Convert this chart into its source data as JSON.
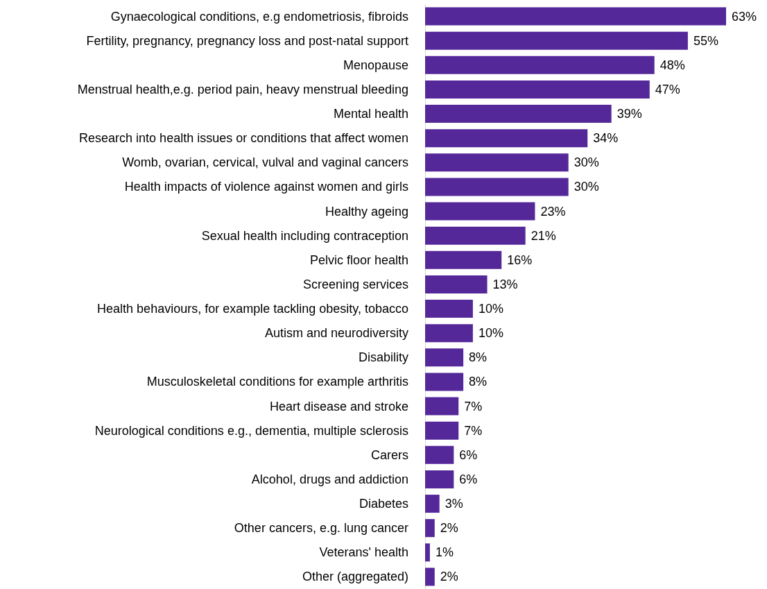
{
  "chart_data": {
    "type": "bar",
    "orientation": "horizontal",
    "categories": [
      "Gynaecological conditions, e.g endometriosis, fibroids",
      "Fertility, pregnancy, pregnancy loss and post-natal support",
      "Menopause",
      "Menstrual health,e.g. period pain, heavy menstrual bleeding",
      "Mental health",
      "Research into health issues or conditions that affect women",
      "Womb, ovarian, cervical, vulval and vaginal cancers",
      "Health impacts of violence against women and girls",
      "Healthy ageing",
      "Sexual health including contraception",
      "Pelvic floor health",
      "Screening services",
      "Health behaviours, for example tackling obesity, tobacco",
      "Autism and neurodiversity",
      "Disability",
      "Musculoskeletal conditions for example arthritis",
      "Heart disease and stroke",
      "Neurological conditions e.g., dementia, multiple sclerosis",
      "Carers",
      "Alcohol, drugs and addiction",
      "Diabetes",
      "Other cancers, e.g. lung cancer",
      "Veterans' health",
      "Other (aggregated)"
    ],
    "values": [
      63,
      55,
      48,
      47,
      39,
      34,
      30,
      30,
      23,
      21,
      16,
      13,
      10,
      10,
      8,
      8,
      7,
      7,
      6,
      6,
      3,
      2,
      1,
      2
    ],
    "value_labels": [
      "63%",
      "55%",
      "48%",
      "47%",
      "39%",
      "34%",
      "30%",
      "30%",
      "23%",
      "21%",
      "16%",
      "13%",
      "10%",
      "10%",
      "8%",
      "8%",
      "7%",
      "7%",
      "6%",
      "6%",
      "3%",
      "2%",
      "1%",
      "2%"
    ],
    "color": "#55289a"
  }
}
